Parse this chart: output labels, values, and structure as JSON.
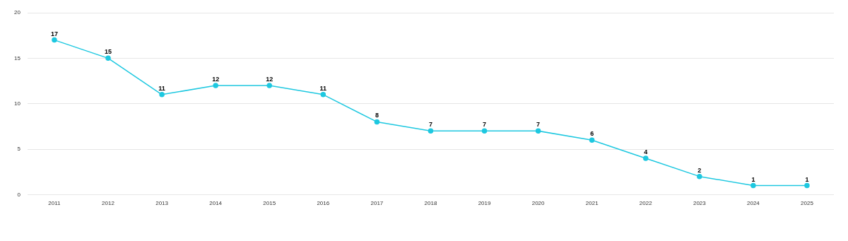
{
  "chart_data": {
    "type": "line",
    "categories": [
      "2011",
      "2012",
      "2013",
      "2014",
      "2015",
      "2016",
      "2017",
      "2018",
      "2019",
      "2020",
      "2021",
      "2022",
      "2023",
      "2024",
      "2025"
    ],
    "series": [
      {
        "color": "#1ec8e0",
        "values": [
          17,
          15,
          11,
          12,
          12,
          11,
          8,
          7,
          7,
          7,
          6,
          4,
          2,
          1,
          1
        ]
      }
    ],
    "ylim": [
      0,
      20
    ],
    "yticks": [
      0,
      5,
      10,
      15,
      20
    ],
    "grid": "y",
    "legend": false,
    "marker": "circle",
    "line_style": "solid",
    "data_labels": true
  }
}
